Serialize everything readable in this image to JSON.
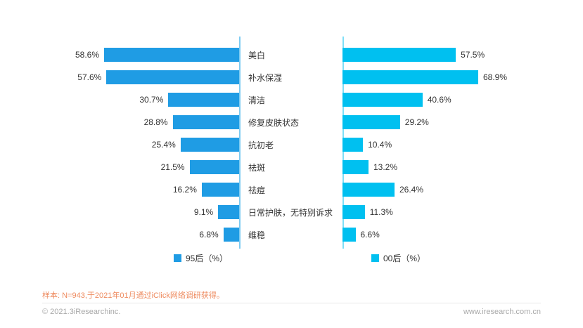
{
  "chart_data": {
    "type": "bar",
    "variant": "butterfly-horizontal",
    "title": "",
    "categories": [
      "美白",
      "补水保湿",
      "清洁",
      "修复皮肤状态",
      "抗初老",
      "祛斑",
      "祛痘",
      "日常护肤，无特别诉求",
      "维稳"
    ],
    "series": [
      {
        "name": "95后（%）",
        "side": "left",
        "color": "#1f9ce4",
        "values": [
          58.6,
          57.6,
          30.7,
          28.8,
          25.4,
          21.5,
          16.2,
          9.1,
          6.8
        ]
      },
      {
        "name": "00后（%）",
        "side": "right",
        "color": "#00c0f0",
        "values": [
          57.5,
          68.9,
          40.6,
          29.2,
          10.4,
          13.2,
          26.4,
          11.3,
          6.6
        ]
      }
    ],
    "value_suffix": "%",
    "grid": false,
    "legend_position": "bottom",
    "axis_note": "each side scaled to its own max value"
  },
  "colors": {
    "left_bar": "#1f9ce4",
    "right_bar": "#00c0f0",
    "axis_left": "#7ecbf2",
    "axis_right": "#7fdff7",
    "note_text": "#ee8a5e",
    "footer_text": "#a8a8a8"
  },
  "footer": {
    "sample_note": "样本: N=943,于2021年01月通过iClick网络调研获得。",
    "copyright": "© 2021.3iResearchinc.",
    "website": "www.iresearch.com.cn"
  }
}
